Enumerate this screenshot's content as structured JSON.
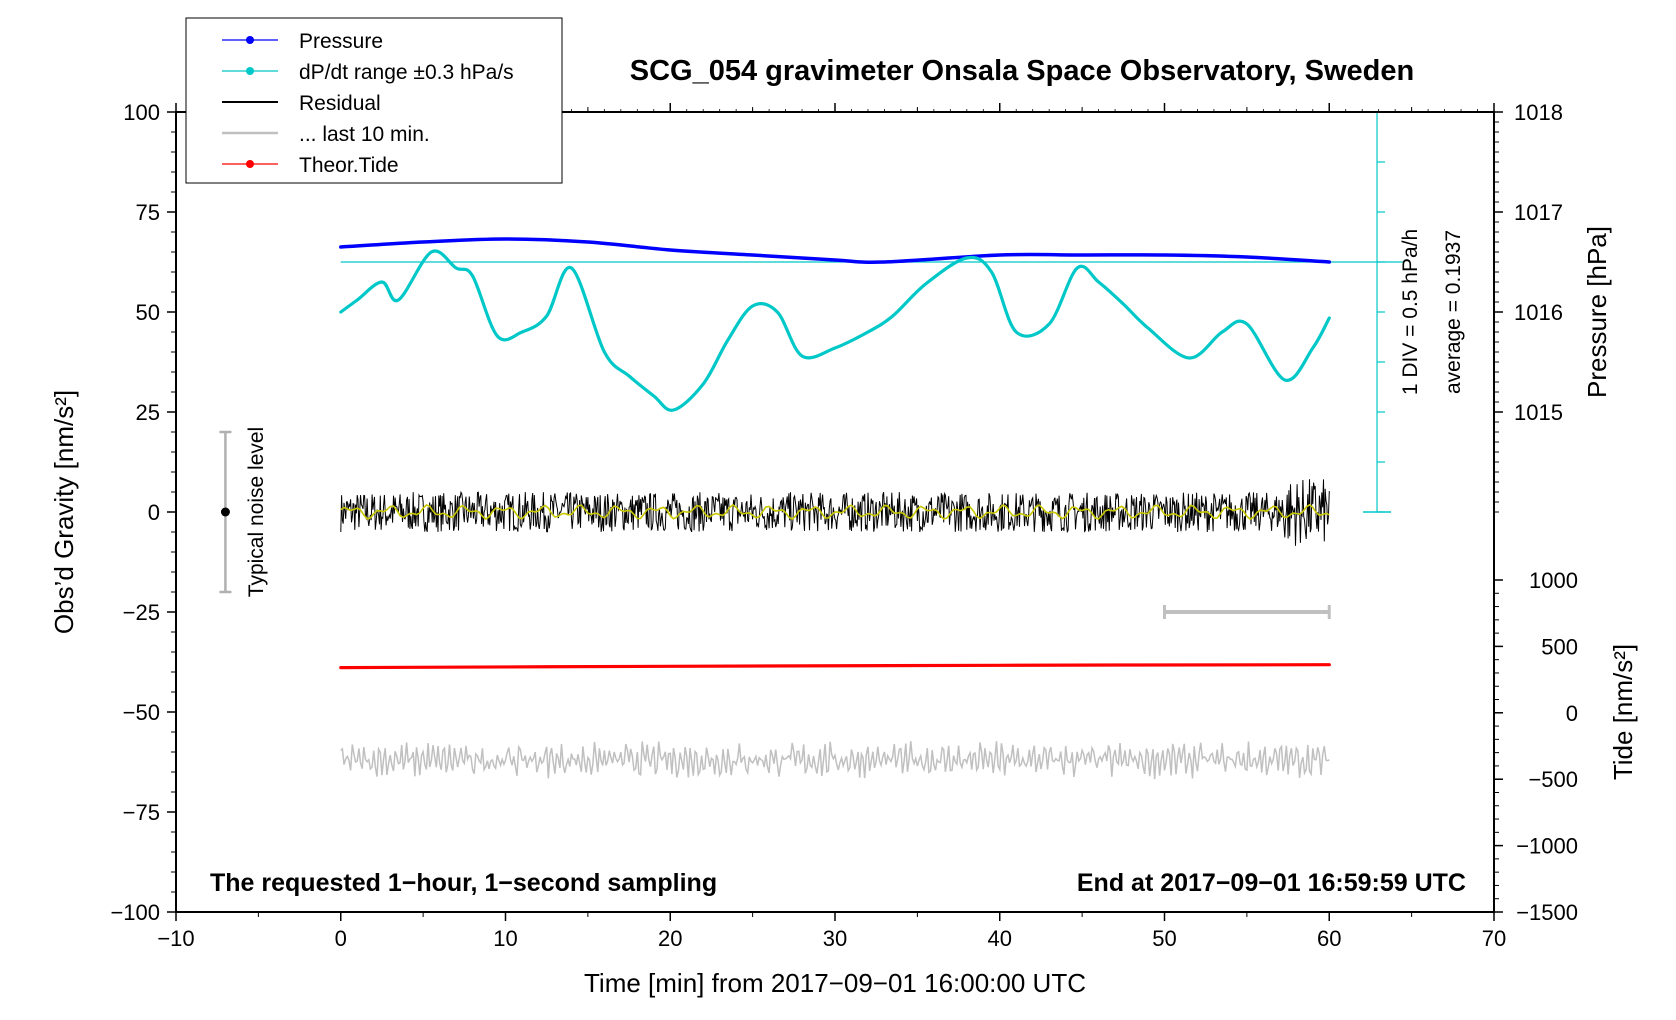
{
  "chart_data": {
    "type": "line",
    "title": "SCG_054 gravimeter Onsala Space Observatory, Sweden",
    "xlabel": "Time [min] from 2017−09−01 16:00:00 UTC",
    "ylabel": "Obs’d Gravity [nm/s²]",
    "y2label": "Pressure [hPa]",
    "y3label": "Tide [nm/s²]",
    "xlim": [
      -10,
      70
    ],
    "ylim": [
      -100,
      100
    ],
    "pressure_lim": [
      1014.0,
      1018.0
    ],
    "tide_lim": [
      -1500,
      1000
    ],
    "xticks": [
      -10,
      0,
      10,
      20,
      30,
      40,
      50,
      60,
      70
    ],
    "yticks": [
      -100,
      -75,
      -50,
      -25,
      0,
      25,
      50,
      75,
      100
    ],
    "pressure_ticks": [
      1015,
      1016,
      1017,
      1018
    ],
    "tide_ticks": [
      -1500,
      -1000,
      -500,
      0,
      500,
      1000
    ],
    "xtick_labels": [
      "−10",
      "0",
      "10",
      "20",
      "30",
      "40",
      "50",
      "60",
      "70"
    ],
    "ytick_labels": [
      "−100",
      "−75",
      "−50",
      "−25",
      "0",
      "25",
      "50",
      "75",
      "100"
    ],
    "pressure_tick_labels": [
      "1015",
      "1016",
      "1017",
      "1018"
    ],
    "tide_tick_labels": [
      "−1500",
      "−1000",
      "−500",
      "0",
      "500",
      "1000"
    ],
    "legend": {
      "position": "top-left",
      "items": [
        "Pressure",
        "dP/dt range ±0.3 hPa/s",
        "Residual",
        "... last 10 min.",
        "Theor.Tide"
      ]
    },
    "series": [
      {
        "name": "Pressure",
        "color": "#0000ff",
        "axis": "pressure",
        "x": [
          0,
          5,
          10,
          15,
          20,
          25,
          30,
          33,
          40,
          45,
          50,
          55,
          60
        ],
        "values": [
          1016.65,
          1016.7,
          1016.73,
          1016.7,
          1016.62,
          1016.57,
          1016.52,
          1016.5,
          1016.57,
          1016.57,
          1016.57,
          1016.55,
          1016.5
        ]
      },
      {
        "name": "dP/dt range ±0.3 hPa/s",
        "color": "#00c8c8",
        "axis": "gravity",
        "x": [
          0,
          1,
          2.5,
          3.5,
          5.5,
          7,
          8,
          9.5,
          11,
          12.5,
          14,
          16,
          17.5,
          19,
          20.2,
          22,
          23.5,
          25,
          26.5,
          28,
          30,
          32,
          33.5,
          35.5,
          38,
          39.5,
          41,
          43,
          44.7,
          46,
          47.5,
          49,
          51.5,
          53.5,
          55,
          57.3,
          59,
          60
        ],
        "values": [
          50,
          53,
          57.5,
          53,
          65,
          61,
          59,
          44,
          45,
          49,
          61,
          40,
          34,
          29,
          25.5,
          32,
          43,
          51.5,
          50,
          39,
          41,
          45,
          49,
          57,
          63.5,
          60,
          45,
          47,
          61,
          57.5,
          52,
          46,
          38.5,
          45,
          47,
          33,
          41,
          48.5
        ]
      },
      {
        "name": "Residual",
        "color": "#000000",
        "axis": "gravity",
        "x": [
          0,
          60
        ],
        "values": [
          0,
          0
        ],
        "noise_amplitude": 5
      },
      {
        "name": "... last 10 min.",
        "color": "#c0c0c0",
        "axis": "gravity",
        "x": [
          0,
          60
        ],
        "values": [
          -62,
          -62
        ],
        "noise_amplitude": 4,
        "marker_range": [
          50,
          60
        ]
      },
      {
        "name": "Theor.Tide",
        "color": "#ff0000",
        "axis": "tide",
        "x": [
          0,
          20,
          40,
          60
        ],
        "values": [
          340,
          350,
          358,
          362
        ]
      }
    ],
    "cursor": {
      "value": 1016.5,
      "color": "#00c8c8"
    },
    "div_label": "1 DIV = 0.5 hPa/h",
    "average_label": "average = 0.1937",
    "noise_label": "Typical noise level",
    "noise_range": [
      -20,
      20
    ],
    "footnote_left": "The requested 1−hour, 1−second sampling",
    "footnote_right": "End at 2017−09−01 16:59:59 UTC",
    "grid": false
  }
}
